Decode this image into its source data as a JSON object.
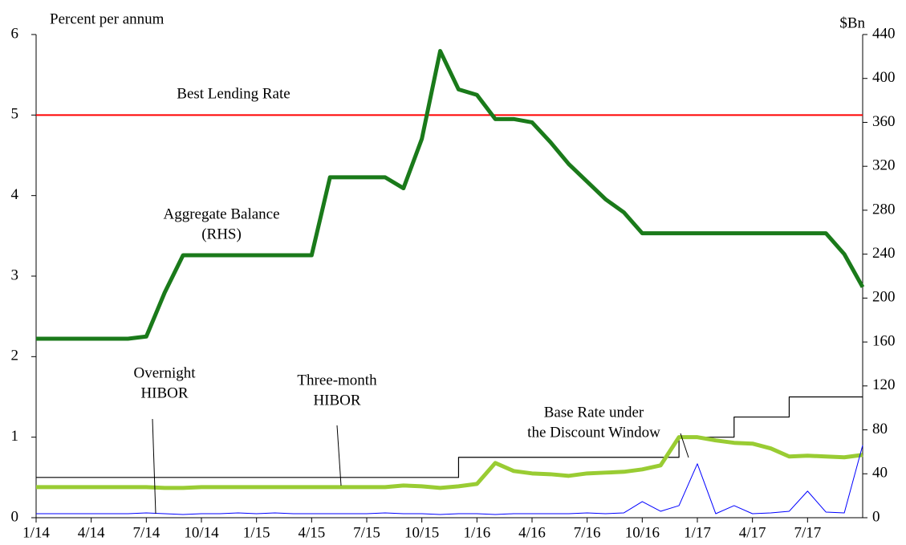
{
  "chart_data": {
    "type": "line",
    "ylabel": "Percent per annum",
    "y2label": "$Bn",
    "x": [
      "1/14",
      "2/14",
      "3/14",
      "4/14",
      "5/14",
      "6/14",
      "7/14",
      "8/14",
      "9/14",
      "10/14",
      "11/14",
      "12/14",
      "1/15",
      "2/15",
      "3/15",
      "4/15",
      "5/15",
      "6/15",
      "7/15",
      "8/15",
      "9/15",
      "10/15",
      "11/15",
      "12/15",
      "1/16",
      "2/16",
      "3/16",
      "4/16",
      "5/16",
      "6/16",
      "7/16",
      "8/16",
      "9/16",
      "10/16",
      "11/16",
      "12/16",
      "1/17",
      "2/17",
      "3/17",
      "4/17",
      "5/17",
      "6/17",
      "7/17",
      "8/17",
      "9/17",
      "10/17"
    ],
    "xticks": [
      "1/14",
      "4/14",
      "7/14",
      "10/14",
      "1/15",
      "4/15",
      "7/15",
      "10/15",
      "1/16",
      "4/16",
      "7/16",
      "10/16",
      "1/17",
      "4/17",
      "7/17"
    ],
    "ylim": [
      0,
      6
    ],
    "yticks": [
      0,
      1,
      2,
      3,
      4,
      5,
      6
    ],
    "y2lim": [
      0,
      440
    ],
    "y2ticks": [
      0,
      40,
      80,
      120,
      160,
      200,
      240,
      280,
      320,
      360,
      400,
      440
    ],
    "series": [
      {
        "name": "Best Lending Rate",
        "color": "#ff0000",
        "width": 2,
        "values": [
          5,
          5,
          5,
          5,
          5,
          5,
          5,
          5,
          5,
          5,
          5,
          5,
          5,
          5,
          5,
          5,
          5,
          5,
          5,
          5,
          5,
          5,
          5,
          5,
          5,
          5,
          5,
          5,
          5,
          5,
          5,
          5,
          5,
          5,
          5,
          5,
          5,
          5,
          5,
          5,
          5,
          5,
          5,
          5,
          5,
          5
        ]
      },
      {
        "name": "Aggregate Balance (RHS)",
        "color": "#1a7a1a",
        "width": 5,
        "axis": "y2",
        "values": [
          163,
          163,
          163,
          163,
          163,
          163,
          165,
          205,
          239,
          239,
          239,
          239,
          239,
          239,
          239,
          239,
          310,
          310,
          310,
          310,
          300,
          345,
          425,
          390,
          385,
          363,
          363,
          360,
          342,
          322,
          306,
          290,
          278,
          259,
          259,
          259,
          259,
          259,
          259,
          259,
          259,
          259,
          259,
          259,
          240,
          210
        ]
      },
      {
        "name": "Base Rate under the Discount Window",
        "color": "#000000",
        "width": 1.2,
        "step": true,
        "values": [
          0.5,
          0.5,
          0.5,
          0.5,
          0.5,
          0.5,
          0.5,
          0.5,
          0.5,
          0.5,
          0.5,
          0.5,
          0.5,
          0.5,
          0.5,
          0.5,
          0.5,
          0.5,
          0.5,
          0.5,
          0.5,
          0.5,
          0.5,
          0.75,
          0.75,
          0.75,
          0.75,
          0.75,
          0.75,
          0.75,
          0.75,
          0.75,
          0.75,
          0.75,
          0.75,
          1.0,
          1.0,
          1.0,
          1.25,
          1.25,
          1.25,
          1.5,
          1.5,
          1.5,
          1.5,
          1.5
        ]
      },
      {
        "name": "Three-month HIBOR",
        "color": "#99cc33",
        "width": 5,
        "values": [
          0.38,
          0.38,
          0.38,
          0.38,
          0.38,
          0.38,
          0.38,
          0.37,
          0.37,
          0.38,
          0.38,
          0.38,
          0.38,
          0.38,
          0.38,
          0.38,
          0.38,
          0.38,
          0.38,
          0.38,
          0.4,
          0.39,
          0.37,
          0.39,
          0.42,
          0.68,
          0.58,
          0.55,
          0.54,
          0.52,
          0.55,
          0.56,
          0.57,
          0.6,
          0.65,
          1.0,
          1.0,
          0.96,
          0.93,
          0.92,
          0.86,
          0.76,
          0.77,
          0.76,
          0.75,
          0.78
        ]
      },
      {
        "name": "Overnight HIBOR",
        "color": "#0000ff",
        "width": 1,
        "values": [
          0.05,
          0.05,
          0.05,
          0.05,
          0.05,
          0.05,
          0.06,
          0.05,
          0.04,
          0.05,
          0.05,
          0.06,
          0.05,
          0.06,
          0.05,
          0.05,
          0.05,
          0.05,
          0.05,
          0.06,
          0.05,
          0.05,
          0.04,
          0.05,
          0.05,
          0.04,
          0.05,
          0.05,
          0.05,
          0.05,
          0.06,
          0.05,
          0.06,
          0.2,
          0.08,
          0.15,
          0.67,
          0.05,
          0.15,
          0.05,
          0.06,
          0.08,
          0.33,
          0.07,
          0.06,
          0.9
        ]
      }
    ],
    "annotations": [
      {
        "lines": [
          "Best Lending Rate"
        ]
      },
      {
        "lines": [
          "Aggregate Balance",
          "(RHS)"
        ]
      },
      {
        "lines": [
          "Overnight",
          "HIBOR"
        ]
      },
      {
        "lines": [
          "Three-month",
          "HIBOR"
        ]
      },
      {
        "lines": [
          "Base Rate under",
          "the Discount Window"
        ]
      }
    ]
  }
}
